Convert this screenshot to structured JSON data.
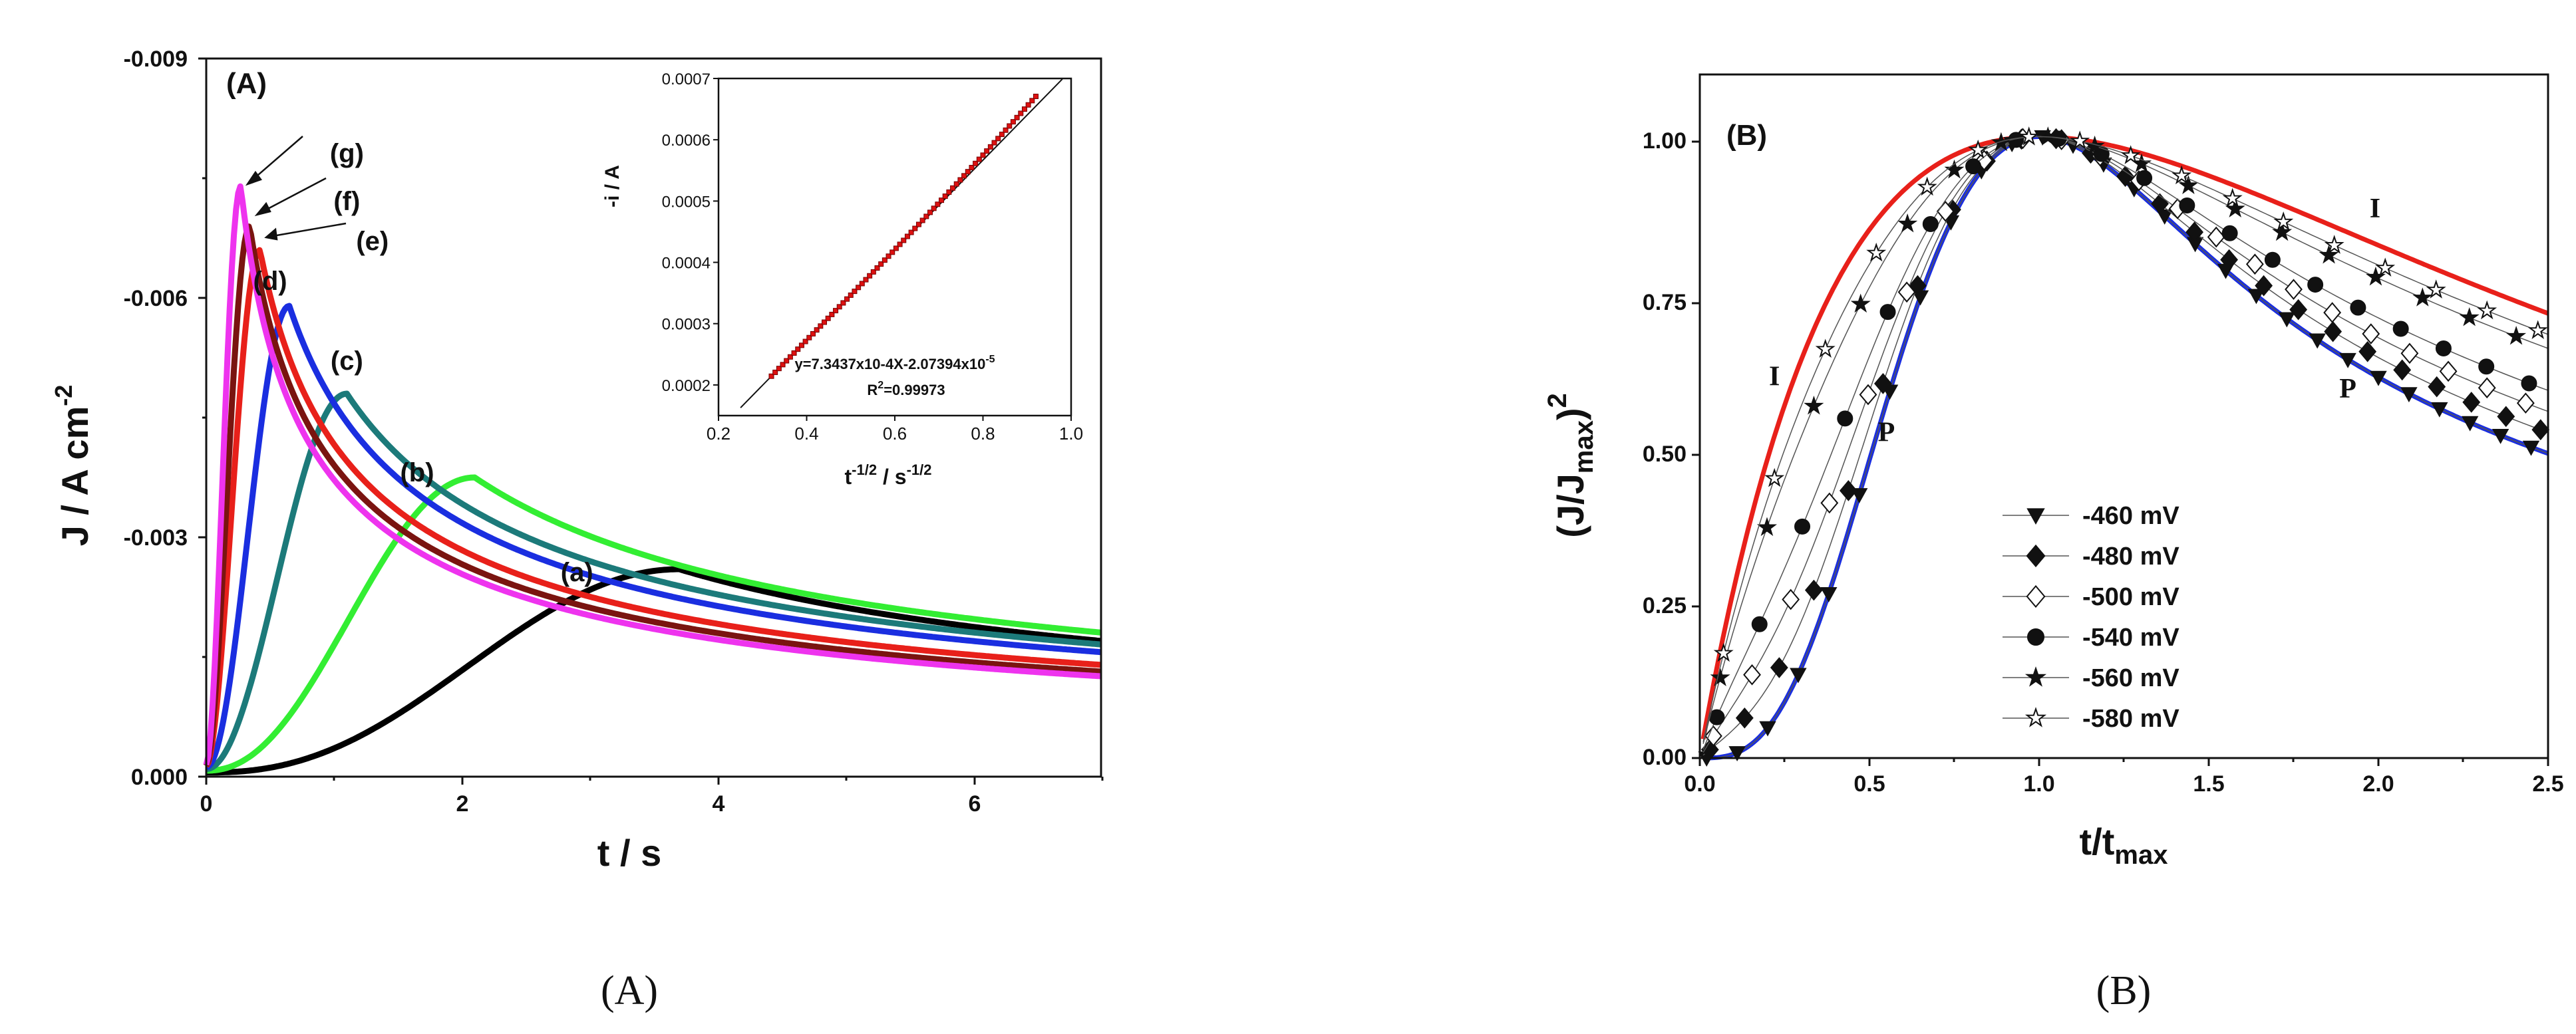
{
  "chart_data": [
    {
      "id": "A",
      "type": "line",
      "panel_label": "(A)",
      "caption": "(A)",
      "xlabel": "t / s",
      "ylabel": "J / A cm",
      "ylabel_sup": "-2",
      "xlim": [
        0,
        7
      ],
      "ylim": [
        0,
        -0.009
      ],
      "x_ticks": [
        "0",
        "2",
        "4",
        "6"
      ],
      "y_ticks": [
        "0.000",
        "-0.003",
        "-0.006",
        "-0.009"
      ],
      "series": [
        {
          "name": "(a)",
          "color": "#000000",
          "tmax": 3.7,
          "jmax": -0.0026,
          "n": 2.4
        },
        {
          "name": "(b)",
          "color": "#33ee33",
          "tmax": 2.1,
          "jmax": -0.00375,
          "n": 2.2
        },
        {
          "name": "(c)",
          "color": "#1c7a7a",
          "tmax": 1.1,
          "jmax": -0.0048,
          "n": 2.0
        },
        {
          "name": "(d)",
          "color": "#1a2ee0",
          "tmax": 0.65,
          "jmax": -0.0059,
          "n": 2.0
        },
        {
          "name": "(e)",
          "color": "#e8201a",
          "tmax": 0.42,
          "jmax": -0.0066,
          "n": 1.8
        },
        {
          "name": "(f)",
          "color": "#7a1410",
          "tmax": 0.34,
          "jmax": -0.0069,
          "n": 1.8
        },
        {
          "name": "(g)",
          "color": "#ee33ee",
          "tmax": 0.27,
          "jmax": -0.0074,
          "n": 1.8
        }
      ],
      "curve_labels": [
        {
          "text": "(a)",
          "x": 2.9,
          "y": -0.00245
        },
        {
          "text": "(b)",
          "x": 1.65,
          "y": -0.0037
        },
        {
          "text": "(c)",
          "x": 1.1,
          "y": -0.0051
        },
        {
          "text": "(d)",
          "x": 0.5,
          "y": -0.0061
        },
        {
          "text": "(e)",
          "x": 1.3,
          "y": -0.0066
        },
        {
          "text": "(f)",
          "x": 1.1,
          "y": -0.0071
        },
        {
          "text": "(g)",
          "x": 1.1,
          "y": -0.0077
        }
      ],
      "inset": {
        "type": "scatter",
        "xlabel": "t",
        "xlabel_sup": "-1/2",
        "xlabel_mid": " / s",
        "xlabel_sup2": "-1/2",
        "ylabel": "-i / A",
        "xlim": [
          0.2,
          1.0
        ],
        "ylim": [
          0.00015,
          0.0007
        ],
        "x_ticks": [
          "0.2",
          "0.4",
          "0.6",
          "0.8",
          "1.0"
        ],
        "y_ticks": [
          "0.0002",
          "0.0003",
          "0.0004",
          "0.0005",
          "0.0006",
          "0.0007"
        ],
        "points_x_range": [
          0.32,
          0.92
        ],
        "fit": {
          "slope": 0.00073437,
          "intercept": -2.07394e-05
        },
        "equation": "y=7.3437x10-4X-2.07394x10",
        "equation_sup": "-5",
        "r2_label": "R",
        "r2_sup": "2",
        "r2_value": "=0.99973"
      }
    },
    {
      "id": "B",
      "type": "line+scatter",
      "panel_label": "(B)",
      "caption": "(B)",
      "xlabel": "t/t",
      "xlabel_sub": "max",
      "ylabel": "(J/J",
      "ylabel_sub": "max",
      "ylabel_end": ")",
      "ylabel_sup": "2",
      "xlim": [
        0,
        2.5
      ],
      "ylim": [
        0,
        1.1
      ],
      "x_ticks": [
        "0.0",
        "0.5",
        "1.0",
        "1.5",
        "2.0",
        "2.5"
      ],
      "y_ticks": [
        "0.00",
        "0.25",
        "0.50",
        "0.75",
        "1.00"
      ],
      "theory": [
        {
          "name": "I",
          "color": "#e8201a",
          "model": "instantaneous"
        },
        {
          "name": "P",
          "color": "#1a2ee0",
          "model": "progressive"
        }
      ],
      "theory_labels": [
        {
          "text": "I",
          "x": 0.22,
          "y": 0.6
        },
        {
          "text": "P",
          "x": 0.55,
          "y": 0.51
        },
        {
          "text": "I",
          "x": 1.99,
          "y": 0.87
        },
        {
          "text": "P",
          "x": 1.91,
          "y": 0.58
        }
      ],
      "series": [
        {
          "name": "-460 mV",
          "marker": "triangle-down",
          "filled": true,
          "w": 0.0
        },
        {
          "name": "-480 mV",
          "marker": "diamond",
          "filled": true,
          "w": 0.15
        },
        {
          "name": "-500 mV",
          "marker": "diamond",
          "filled": false,
          "w": 0.3
        },
        {
          "name": "-540 mV",
          "marker": "circle",
          "filled": true,
          "w": 0.45
        },
        {
          "name": "-560 mV",
          "marker": "star",
          "filled": true,
          "w": 0.75
        },
        {
          "name": "-580 mV",
          "marker": "star",
          "filled": false,
          "w": 0.85
        }
      ]
    }
  ]
}
